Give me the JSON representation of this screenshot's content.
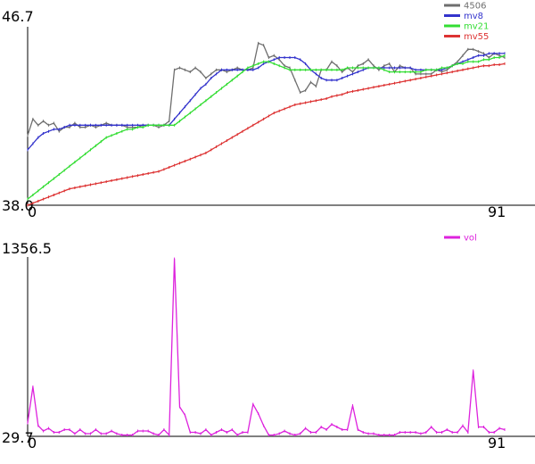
{
  "chart_data": [
    {
      "type": "line",
      "title": "",
      "xlabel": "",
      "ylabel": "",
      "xlim": [
        0,
        91
      ],
      "ylim": [
        38.0,
        46.7
      ],
      "x_tick_labels": [
        "0",
        "91"
      ],
      "y_tick_labels": [
        "38.0",
        "46.7"
      ],
      "legend": "top-right",
      "grid": false,
      "series": [
        {
          "name": "4506",
          "color": "#6e6e6e",
          "values": [
            41.4,
            42.2,
            41.9,
            42.1,
            41.9,
            42.0,
            41.6,
            41.8,
            41.8,
            42.0,
            41.8,
            41.8,
            41.9,
            41.8,
            41.9,
            42.0,
            41.9,
            41.9,
            41.9,
            41.8,
            41.8,
            41.8,
            41.9,
            41.9,
            41.9,
            41.8,
            41.9,
            42.1,
            44.6,
            44.7,
            44.6,
            44.5,
            44.7,
            44.5,
            44.2,
            44.4,
            44.6,
            44.6,
            44.5,
            44.6,
            44.7,
            44.6,
            44.6,
            44.7,
            45.9,
            45.8,
            45.2,
            45.3,
            45.1,
            44.8,
            44.7,
            44.1,
            43.5,
            43.6,
            44.0,
            43.8,
            44.6,
            44.6,
            45.0,
            44.8,
            44.5,
            44.7,
            44.5,
            44.8,
            44.9,
            45.1,
            44.8,
            44.6,
            44.8,
            44.9,
            44.5,
            44.8,
            44.7,
            44.7,
            44.4,
            44.4,
            44.4,
            44.4,
            44.6,
            44.5,
            44.6,
            44.8,
            45.0,
            45.3,
            45.6,
            45.6,
            45.5,
            45.4,
            45.2,
            45.4,
            45.3,
            45.2
          ]
        },
        {
          "name": "mv8",
          "color": "#3333cc",
          "values": [
            40.7,
            41.0,
            41.3,
            41.5,
            41.6,
            41.7,
            41.7,
            41.8,
            41.9,
            41.9,
            41.9,
            41.9,
            41.9,
            41.9,
            41.9,
            41.9,
            41.9,
            41.9,
            41.9,
            41.9,
            41.9,
            41.9,
            41.9,
            41.9,
            41.9,
            41.9,
            41.9,
            41.9,
            42.2,
            42.5,
            42.8,
            43.1,
            43.4,
            43.7,
            43.9,
            44.2,
            44.4,
            44.6,
            44.6,
            44.6,
            44.6,
            44.6,
            44.6,
            44.6,
            44.7,
            44.9,
            45.0,
            45.1,
            45.2,
            45.2,
            45.2,
            45.2,
            45.1,
            44.9,
            44.6,
            44.4,
            44.2,
            44.1,
            44.1,
            44.1,
            44.2,
            44.3,
            44.4,
            44.5,
            44.6,
            44.7,
            44.7,
            44.7,
            44.7,
            44.7,
            44.7,
            44.7,
            44.7,
            44.7,
            44.6,
            44.6,
            44.6,
            44.6,
            44.6,
            44.6,
            44.7,
            44.8,
            44.9,
            45.0,
            45.1,
            45.2,
            45.3,
            45.3,
            45.4,
            45.4,
            45.4,
            45.4
          ]
        },
        {
          "name": "mv21",
          "color": "#33dd33",
          "values": [
            38.3,
            38.5,
            38.7,
            38.9,
            39.1,
            39.3,
            39.5,
            39.7,
            39.9,
            40.1,
            40.3,
            40.5,
            40.7,
            40.9,
            41.1,
            41.3,
            41.4,
            41.5,
            41.6,
            41.7,
            41.7,
            41.8,
            41.8,
            41.9,
            41.9,
            41.9,
            41.9,
            41.9,
            41.9,
            42.1,
            42.3,
            42.5,
            42.7,
            42.9,
            43.1,
            43.3,
            43.5,
            43.7,
            43.9,
            44.1,
            44.3,
            44.5,
            44.7,
            44.8,
            44.9,
            45.0,
            45.0,
            44.9,
            44.8,
            44.7,
            44.6,
            44.6,
            44.6,
            44.6,
            44.6,
            44.6,
            44.6,
            44.6,
            44.6,
            44.6,
            44.6,
            44.7,
            44.7,
            44.7,
            44.7,
            44.7,
            44.7,
            44.7,
            44.6,
            44.5,
            44.5,
            44.5,
            44.5,
            44.5,
            44.5,
            44.5,
            44.6,
            44.6,
            44.6,
            44.7,
            44.7,
            44.8,
            44.9,
            44.9,
            45.0,
            45.0,
            45.0,
            45.1,
            45.1,
            45.2,
            45.2,
            45.3
          ]
        },
        {
          "name": "mv55",
          "color": "#dd3333",
          "values": [
            38.0,
            38.1,
            38.2,
            38.3,
            38.4,
            38.5,
            38.6,
            38.7,
            38.8,
            38.85,
            38.9,
            38.95,
            39.0,
            39.05,
            39.1,
            39.15,
            39.2,
            39.25,
            39.3,
            39.35,
            39.4,
            39.45,
            39.5,
            39.55,
            39.6,
            39.65,
            39.75,
            39.85,
            39.95,
            40.05,
            40.15,
            40.25,
            40.35,
            40.45,
            40.55,
            40.7,
            40.85,
            41.0,
            41.15,
            41.3,
            41.45,
            41.6,
            41.75,
            41.9,
            42.05,
            42.2,
            42.35,
            42.5,
            42.6,
            42.7,
            42.8,
            42.9,
            42.95,
            43.0,
            43.05,
            43.1,
            43.15,
            43.2,
            43.3,
            43.35,
            43.4,
            43.5,
            43.55,
            43.6,
            43.65,
            43.7,
            43.75,
            43.8,
            43.85,
            43.9,
            43.95,
            44.0,
            44.05,
            44.1,
            44.15,
            44.2,
            44.25,
            44.3,
            44.35,
            44.4,
            44.45,
            44.5,
            44.55,
            44.6,
            44.65,
            44.7,
            44.75,
            44.8,
            44.8,
            44.85,
            44.85,
            44.9
          ]
        }
      ]
    },
    {
      "type": "line",
      "title": "",
      "xlabel": "",
      "ylabel": "",
      "xlim": [
        0,
        91
      ],
      "ylim": [
        29.7,
        1356.5
      ],
      "x_tick_labels": [
        "0",
        "91"
      ],
      "y_tick_labels": [
        "29.7",
        "1356.5"
      ],
      "legend": "top-right",
      "grid": false,
      "series": [
        {
          "name": "vol",
          "color": "#dd22dd",
          "values": [
            130,
            400,
            110,
            70,
            90,
            60,
            60,
            80,
            80,
            50,
            80,
            50,
            50,
            80,
            50,
            50,
            70,
            50,
            40,
            40,
            40,
            70,
            70,
            70,
            50,
            40,
            80,
            40,
            1356,
            250,
            190,
            60,
            60,
            50,
            80,
            40,
            60,
            80,
            60,
            80,
            40,
            60,
            60,
            270,
            200,
            110,
            40,
            40,
            50,
            70,
            50,
            40,
            50,
            90,
            60,
            60,
            100,
            80,
            120,
            100,
            80,
            80,
            260,
            80,
            60,
            50,
            50,
            40,
            40,
            40,
            40,
            60,
            60,
            60,
            60,
            50,
            60,
            100,
            60,
            60,
            80,
            60,
            60,
            110,
            60,
            520,
            100,
            100,
            60,
            60,
            90,
            80
          ]
        }
      ]
    }
  ]
}
